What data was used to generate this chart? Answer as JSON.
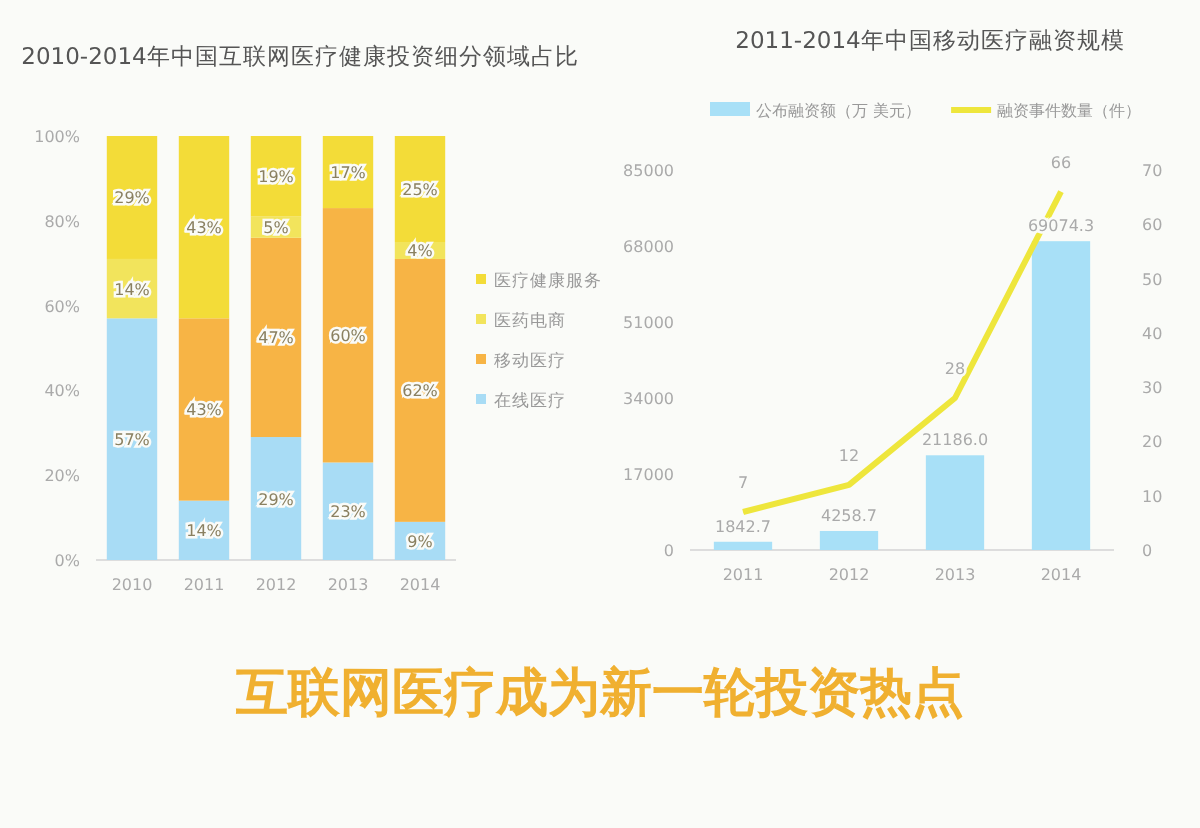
{
  "chart_data": [
    {
      "type": "bar",
      "title": "2010-2014年中国互联网医疗健康投资细分领域占比",
      "categories": [
        "2010",
        "2011",
        "2012",
        "2013",
        "2014"
      ],
      "stacked": true,
      "legend": "right",
      "ylim": [
        0,
        100
      ],
      "yticks": [
        {
          "value": 0,
          "label": "0%"
        },
        {
          "value": 20,
          "label": "20%"
        },
        {
          "value": 40,
          "label": "40%"
        },
        {
          "value": 60,
          "label": "60%"
        },
        {
          "value": 80,
          "label": "80%"
        },
        {
          "value": 100,
          "label": "100%"
        }
      ],
      "series": [
        {
          "name": "在线医疗",
          "color": "#a8dcf5",
          "values": [
            57,
            14,
            29,
            23,
            9
          ],
          "value_labels": [
            "57%",
            "14%",
            "29%",
            "23%",
            "9%"
          ]
        },
        {
          "name": "移动医疗",
          "color": "#f7b445",
          "values": [
            0,
            43,
            47,
            60,
            62
          ],
          "value_labels": [
            null,
            "43%",
            "47%",
            "60%",
            "62%"
          ]
        },
        {
          "name": "医药电商",
          "color": "#f2e45c",
          "values": [
            14,
            0,
            5,
            0,
            4
          ],
          "value_labels": [
            "14%",
            null,
            "5%",
            null,
            "4%"
          ]
        },
        {
          "name": "医疗健康服务",
          "color": "#f3dc38",
          "values": [
            29,
            43,
            19,
            17,
            25
          ],
          "value_labels": [
            "29%",
            "43%",
            "19%",
            "17%",
            "25%"
          ]
        }
      ]
    },
    {
      "type": "bar",
      "title": "2011-2014年中国移动医疗融资规模",
      "categories": [
        "2011",
        "2012",
        "2013",
        "2014"
      ],
      "legend": "top",
      "ylim": [
        0,
        85000
      ],
      "yticks": [
        0,
        17000,
        34000,
        51000,
        68000,
        85000
      ],
      "y2lim": [
        0,
        70
      ],
      "y2ticks": [
        0,
        10,
        20,
        30,
        40,
        50,
        60,
        70
      ],
      "series": [
        {
          "name": "公布融资额（万 美元）",
          "color": "#a8e0f7",
          "values": [
            1842.7,
            4258.7,
            21186.0,
            69074.3
          ],
          "value_labels": [
            "1842.7",
            "4258.7",
            "21186.0",
            "69074.3"
          ]
        },
        {
          "name": "融资事件数量（件）",
          "type": "line",
          "axis": "y2",
          "color": "#eee63c",
          "values": [
            7,
            12,
            28,
            66
          ],
          "value_labels": [
            "7",
            "12",
            "28",
            "66"
          ]
        }
      ]
    },
    {
      "type": "other",
      "title": "互联网医疗成为新一轮投资热点"
    }
  ]
}
